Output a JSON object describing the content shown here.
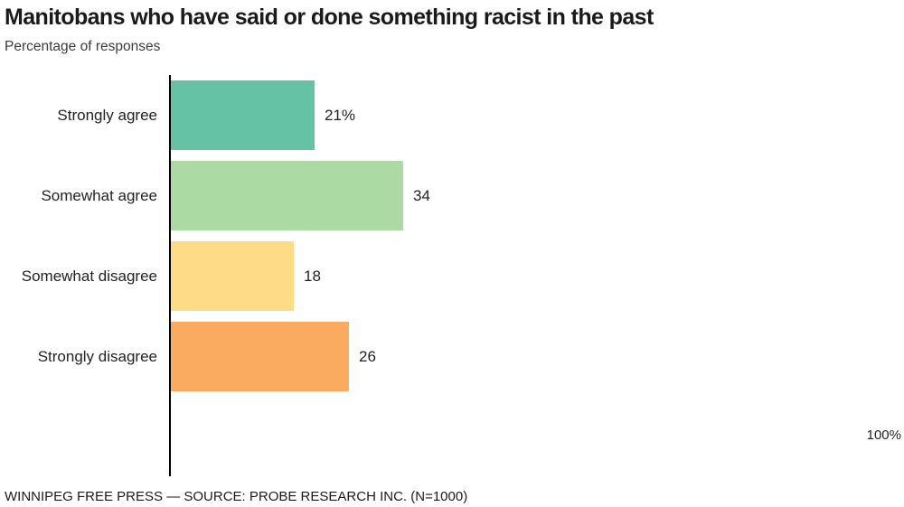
{
  "chart_data": {
    "type": "bar",
    "orientation": "horizontal",
    "title": "Manitobans who have said or done something racist in the past",
    "subtitle": "Percentage of responses",
    "categories": [
      "Strongly agree",
      "Somewhat agree",
      "Somewhat disagree",
      "Strongly disagree"
    ],
    "values": [
      21,
      34,
      18,
      26
    ],
    "value_labels": [
      "21%",
      "34",
      "18",
      "26"
    ],
    "colors": [
      "#66C2A4",
      "#ABDBA3",
      "#FEDC87",
      "#FAAB5F"
    ],
    "xlim": [
      0,
      100
    ],
    "x_max_label": "100%",
    "axis_color": "#000000",
    "legend": "none",
    "grid": "off",
    "source": "WINNIPEG FREE PRESS — SOURCE: PROBE RESEARCH INC. (N=1000)"
  }
}
